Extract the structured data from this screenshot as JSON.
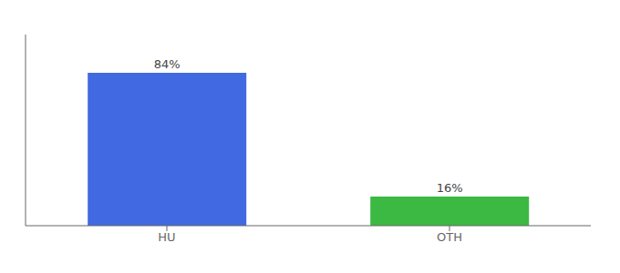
{
  "chart_data": {
    "type": "bar",
    "categories": [
      "HU",
      "OTH"
    ],
    "values": [
      84,
      16
    ],
    "value_labels": [
      "84%",
      "16%"
    ],
    "colors": [
      "#4169E1",
      "#3CB943"
    ],
    "ylim": [
      0,
      105
    ],
    "yticks": [],
    "grid": false,
    "data_labels": true,
    "tick_labels": "x"
  }
}
